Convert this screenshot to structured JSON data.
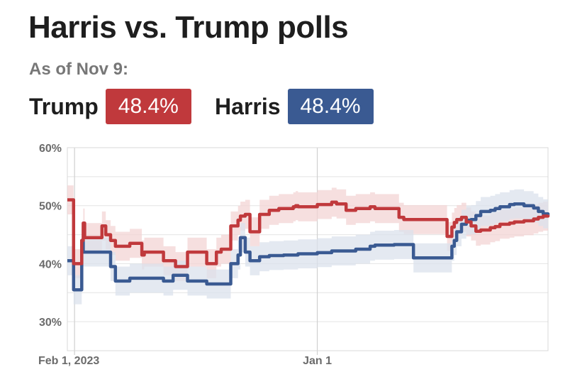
{
  "header": {
    "title": "Harris vs. Trump polls",
    "as_of": "As of Nov 9:"
  },
  "candidates": [
    {
      "name": "Trump",
      "value": "48.4%",
      "color": "#c0393c"
    },
    {
      "name": "Harris",
      "value": "48.4%",
      "color": "#3a5a92"
    }
  ],
  "colors": {
    "trump": "#c0393c",
    "harris": "#3a5a92",
    "trump_band": "#f3d4d4",
    "harris_band": "#dbe2ec",
    "grid": "#e4e4e4"
  },
  "chart_data": {
    "type": "line",
    "title": "Harris vs. Trump polls",
    "ylim": [
      25,
      60
    ],
    "yticks": [
      "30%",
      "40%",
      "50%",
      "60%"
    ],
    "ytick_values": [
      30,
      40,
      50,
      60
    ],
    "xlim": [
      0,
      100
    ],
    "xticks": [
      "Feb 1, 2023",
      "Jan 1"
    ],
    "xtick_values": [
      1.5,
      52
    ],
    "grid": true,
    "series": [
      {
        "name": "Trump",
        "x": [
          0,
          1.2,
          1.3,
          2.8,
          3,
          3.3,
          3.6,
          4,
          5,
          7,
          7.2,
          8,
          8.5,
          9,
          10,
          13,
          15,
          15.5,
          16,
          20,
          22,
          22.5,
          23,
          25,
          26,
          29,
          30,
          31,
          32,
          34,
          35.5,
          36,
          37,
          38,
          40,
          42,
          43,
          44,
          45,
          47,
          47.5,
          48,
          51,
          52,
          55,
          56,
          58,
          59,
          60,
          63,
          64,
          65,
          69,
          70,
          72,
          74,
          78,
          79,
          80,
          80.5,
          81,
          82,
          83,
          84,
          85,
          86,
          88,
          89,
          90,
          92,
          93,
          95,
          97,
          98,
          99,
          100
        ],
        "values": [
          51,
          51,
          40,
          40,
          44,
          47,
          44.5,
          44.5,
          44.5,
          44.5,
          46.5,
          45,
          45,
          44,
          43,
          43.5,
          43.5,
          41.5,
          42,
          40.5,
          40.5,
          39.5,
          39.5,
          42,
          42,
          40,
          40,
          42,
          42.5,
          46.5,
          47.5,
          48.2,
          48.5,
          45.5,
          48.5,
          49.2,
          49.2,
          49.5,
          49.5,
          49.8,
          50,
          49.8,
          49.8,
          50.2,
          50.6,
          50.3,
          49.2,
          49.2,
          49.5,
          49.8,
          49.5,
          49.5,
          48,
          47.6,
          47.6,
          47.6,
          47.6,
          44.7,
          46.3,
          47.1,
          47.6,
          48,
          47.2,
          46.5,
          45.6,
          45.8,
          46.2,
          46.4,
          46.8,
          47,
          47.2,
          47.4,
          47.7,
          48,
          48.2,
          48.4
        ],
        "band": 2.5
      },
      {
        "name": "Harris",
        "x": [
          0,
          1.2,
          1.3,
          2.8,
          3,
          3.3,
          3.6,
          4,
          5,
          7,
          8,
          9,
          10,
          13,
          15,
          20,
          22,
          25,
          29,
          30,
          31,
          32,
          34,
          35.5,
          36,
          37,
          38,
          40,
          42,
          45,
          48,
          52,
          55,
          60,
          63,
          64,
          68,
          70,
          72,
          79,
          80,
          80.5,
          81,
          82,
          83,
          84,
          85,
          86,
          88,
          89,
          90,
          92,
          93,
          95,
          97,
          98,
          99,
          100
        ],
        "values": [
          40.5,
          40.5,
          35.5,
          35.5,
          44,
          42,
          42,
          42,
          42,
          42,
          42,
          39.5,
          37,
          37.5,
          37.5,
          37,
          38,
          37,
          36.5,
          36.5,
          36.5,
          36.5,
          40,
          41.5,
          44.5,
          42,
          40.5,
          41.2,
          41.4,
          41.5,
          41.7,
          41.9,
          42.2,
          42.5,
          43,
          43.2,
          43.3,
          43.3,
          41,
          41,
          43,
          44,
          45.5,
          46.8,
          47.5,
          47.6,
          48.3,
          49,
          49.2,
          49.5,
          49.8,
          50.2,
          50.3,
          50,
          49.6,
          49,
          48.6,
          48.4
        ],
        "band": 2.5
      }
    ]
  }
}
